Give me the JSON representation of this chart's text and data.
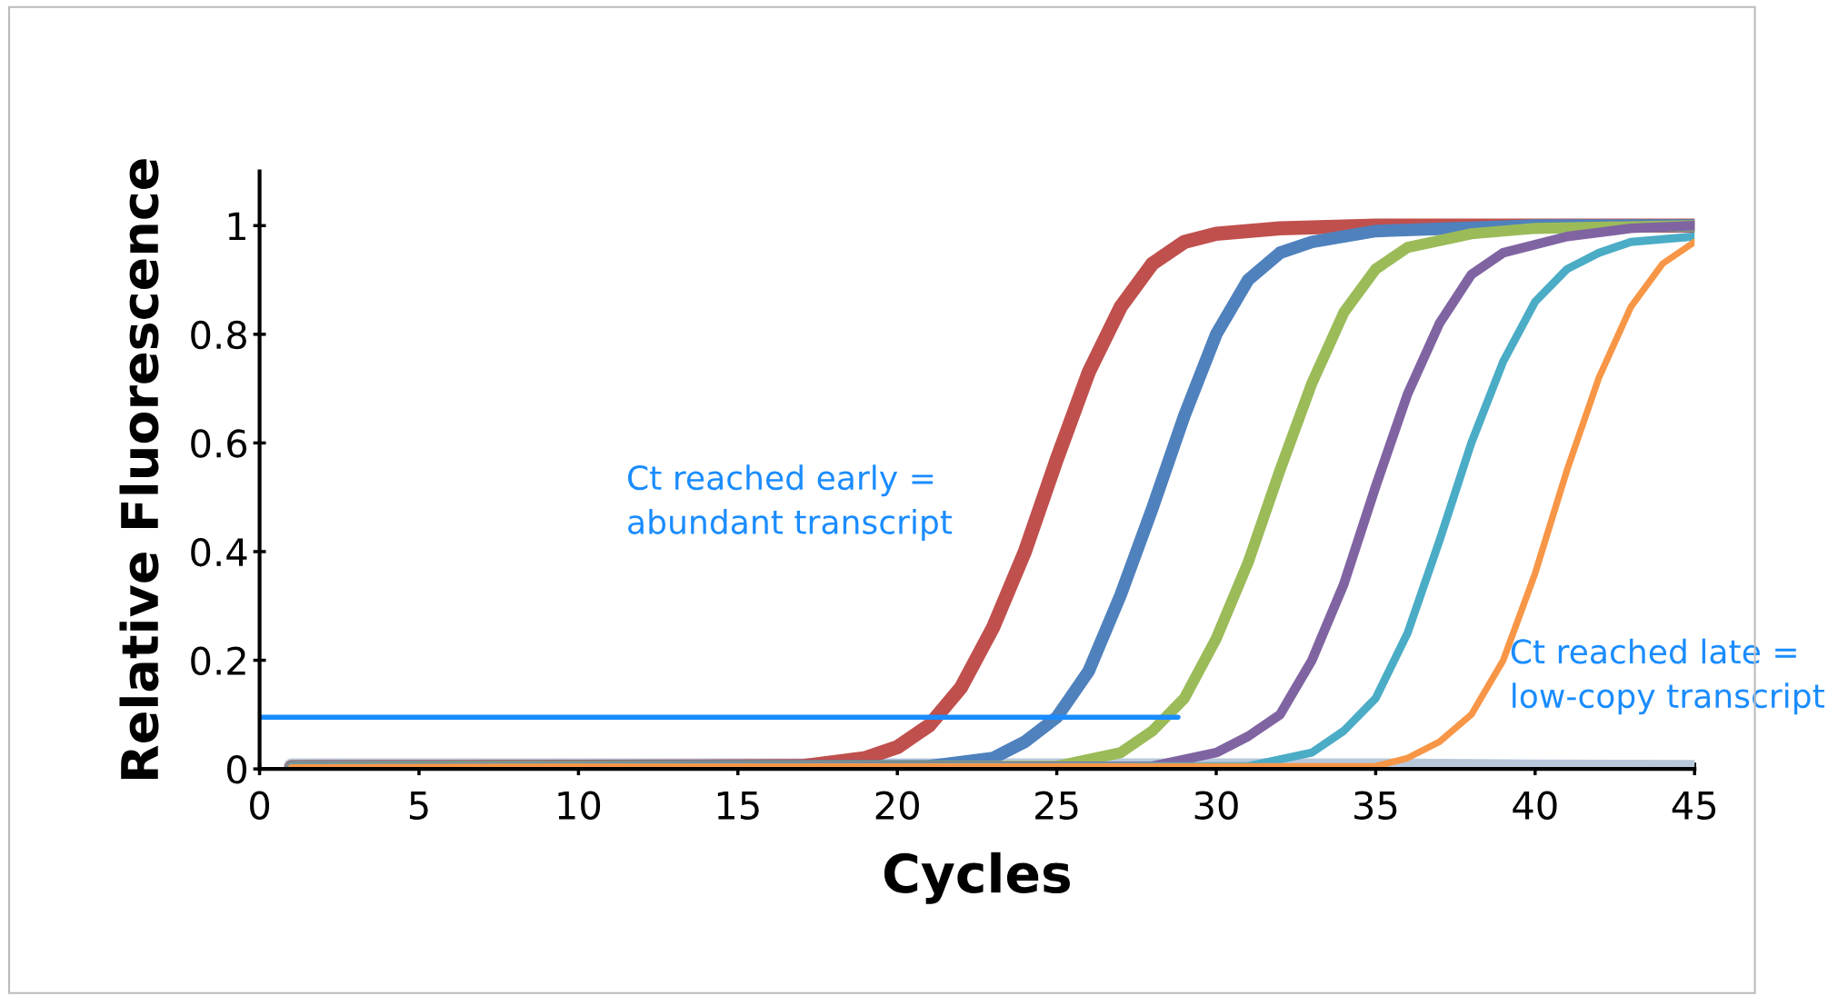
{
  "chart_data": {
    "type": "line",
    "xlabel": "Cycles",
    "ylabel": "Relative Fluorescence",
    "xlim": [
      0,
      45
    ],
    "xticks": [
      0,
      5,
      10,
      15,
      20,
      25,
      30,
      35,
      40,
      45
    ],
    "ylim": [
      0,
      1.1
    ],
    "yticks": [
      0,
      0.2,
      0.4,
      0.6,
      0.8,
      1
    ],
    "grid": false,
    "legend": false,
    "marker": "none",
    "line_style": "solid",
    "series": [
      {
        "color": "#b9c9dc",
        "x": [
          1,
          10,
          20,
          25,
          30,
          35,
          40,
          45
        ],
        "values": [
          0.005,
          0.005,
          0.005,
          0.005,
          0.005,
          0.005,
          0.003,
          0.002
        ]
      },
      {
        "color": "#c0504d",
        "x": [
          1,
          10,
          17,
          19,
          20,
          21,
          22,
          23,
          24,
          25,
          26,
          27,
          28,
          29,
          30,
          32,
          35,
          40,
          45
        ],
        "values": [
          0.003,
          0.004,
          0.005,
          0.02,
          0.04,
          0.08,
          0.15,
          0.26,
          0.4,
          0.57,
          0.73,
          0.85,
          0.93,
          0.97,
          0.985,
          0.995,
          1.0,
          1.0,
          1.0
        ]
      },
      {
        "color": "#4f81bd",
        "x": [
          1,
          10,
          21,
          23,
          24,
          25,
          26,
          27,
          28,
          29,
          30,
          31,
          32,
          33,
          35,
          40,
          45
        ],
        "values": [
          0.003,
          0.004,
          0.005,
          0.02,
          0.05,
          0.095,
          0.18,
          0.32,
          0.48,
          0.65,
          0.8,
          0.9,
          0.95,
          0.97,
          0.99,
          1.0,
          1.0
        ]
      },
      {
        "color": "#9bbb59",
        "x": [
          1,
          10,
          25,
          27,
          28,
          29,
          30,
          31,
          32,
          33,
          34,
          35,
          36,
          38,
          40,
          45
        ],
        "values": [
          0.003,
          0.004,
          0.005,
          0.03,
          0.07,
          0.13,
          0.24,
          0.38,
          0.55,
          0.71,
          0.84,
          0.92,
          0.96,
          0.985,
          0.995,
          1.0
        ]
      },
      {
        "color": "#8064a2",
        "x": [
          1,
          10,
          28,
          30,
          31,
          32,
          33,
          34,
          35,
          36,
          37,
          38,
          39,
          41,
          43,
          45
        ],
        "values": [
          0.003,
          0.004,
          0.005,
          0.03,
          0.06,
          0.1,
          0.2,
          0.34,
          0.52,
          0.69,
          0.82,
          0.91,
          0.95,
          0.98,
          0.995,
          1.0
        ]
      },
      {
        "color": "#4bacc6",
        "x": [
          1,
          10,
          31,
          33,
          34,
          35,
          36,
          37,
          38,
          39,
          40,
          41,
          42,
          43,
          44,
          45
        ],
        "values": [
          0.003,
          0.004,
          0.005,
          0.03,
          0.07,
          0.13,
          0.25,
          0.42,
          0.6,
          0.75,
          0.86,
          0.92,
          0.95,
          0.97,
          0.975,
          0.98
        ]
      },
      {
        "color": "#f79646",
        "x": [
          1,
          10,
          35,
          36,
          37,
          38,
          39,
          40,
          41,
          42,
          43,
          44,
          45
        ],
        "values": [
          0.003,
          0.004,
          0.005,
          0.02,
          0.05,
          0.1,
          0.2,
          0.36,
          0.55,
          0.72,
          0.85,
          0.93,
          0.97
        ]
      },
      {
        "color": "#1a8cff",
        "x": [
          0,
          28.8
        ],
        "values": [
          0.095,
          0.095
        ]
      }
    ],
    "annotations": [
      "Ct reached early =\nabundant transcript",
      "Ct reached late =\nlow-copy transcript"
    ]
  }
}
